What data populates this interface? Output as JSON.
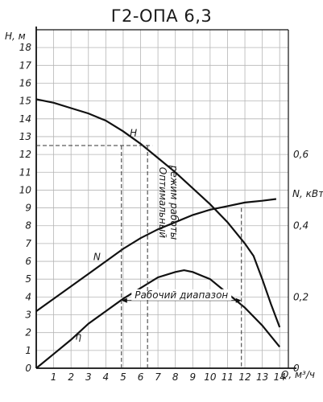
{
  "chart_data": {
    "type": "line",
    "title": "Г2-ОПА 6,3",
    "xlabel": "Q, м³/ч",
    "ylabel": "H, м",
    "ylabel_right": "N, кВт",
    "xlim": [
      0,
      14.5
    ],
    "ylim": [
      0,
      19
    ],
    "ylim_right": [
      0,
      0.95
    ],
    "x_ticks": [
      "0",
      "1",
      "2",
      "3",
      "4",
      "5",
      "6",
      "7",
      "8",
      "9",
      "10",
      "11",
      "12",
      "13",
      "14"
    ],
    "y_ticks": [
      "0",
      "1",
      "2",
      "3",
      "4",
      "5",
      "6",
      "7",
      "8",
      "9",
      "10",
      "11",
      "12",
      "13",
      "14",
      "15",
      "16",
      "17",
      "18"
    ],
    "y_right_ticks": [
      {
        "label": "0",
        "value": 0
      },
      {
        "label": "0,2",
        "value": 0.2
      },
      {
        "label": "0,4",
        "value": 0.4
      },
      {
        "label": "0,6",
        "value": 0.6
      }
    ],
    "grid": true,
    "series": [
      {
        "name": "H",
        "axis": "left",
        "x": [
          0,
          1,
          2,
          3,
          4,
          5,
          6,
          7,
          8,
          9,
          10,
          11,
          12,
          12.5,
          13,
          13.5,
          14
        ],
        "y": [
          15.1,
          14.9,
          14.6,
          14.3,
          13.9,
          13.3,
          12.6,
          11.8,
          11.0,
          10.1,
          9.2,
          8.2,
          7.0,
          6.3,
          5.0,
          3.6,
          2.3
        ]
      },
      {
        "name": "N",
        "axis": "right",
        "x": [
          0,
          1,
          2,
          3,
          4,
          5,
          6,
          7,
          8,
          9,
          10,
          11,
          12,
          13,
          13.8
        ],
        "y": [
          0.16,
          0.195,
          0.23,
          0.265,
          0.3,
          0.335,
          0.365,
          0.39,
          0.41,
          0.43,
          0.445,
          0.455,
          0.465,
          0.47,
          0.475
        ]
      },
      {
        "name": "η",
        "axis": "left",
        "x": [
          0,
          1,
          2,
          3,
          4,
          5,
          6,
          7,
          8,
          8.5,
          9,
          10,
          11,
          12,
          13,
          14
        ],
        "y": [
          0,
          0.8,
          1.6,
          2.5,
          3.2,
          3.9,
          4.5,
          5.1,
          5.4,
          5.5,
          5.4,
          5.0,
          4.2,
          3.4,
          2.4,
          1.2
        ]
      }
    ],
    "annotations": {
      "optimal": "Оптимальный режим работы",
      "range": "Рабочий диапазон",
      "range_x": [
        4.9,
        11.8
      ],
      "range_y": 3.8,
      "optimal_q": 6.4,
      "optimal_h": 12.5
    }
  }
}
